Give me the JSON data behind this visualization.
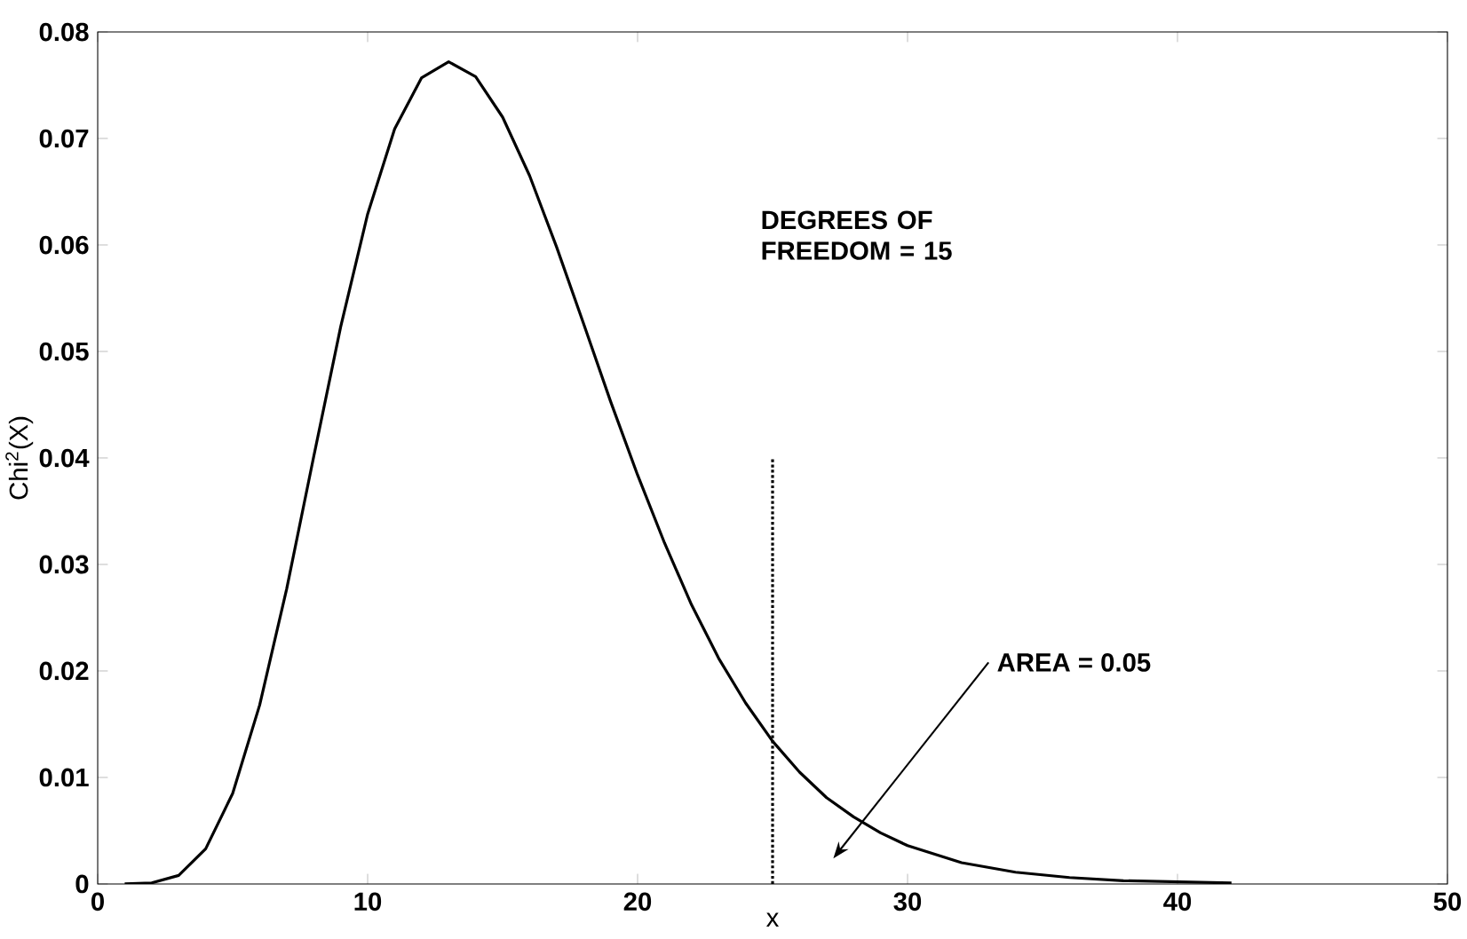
{
  "chart_data": {
    "type": "line",
    "xlabel": "x",
    "ylabel": "Chi$^{2}$(X)",
    "xlim": [
      0,
      50
    ],
    "ylim": [
      0,
      0.08
    ],
    "xticks": [
      0,
      10,
      20,
      30,
      40,
      50
    ],
    "yticks": [
      0,
      0.01,
      0.02,
      0.03,
      0.04,
      0.05,
      0.06,
      0.07,
      0.08
    ],
    "grid": false,
    "series": [
      {
        "color": "#000000",
        "line_style": "solid",
        "x": [
          1,
          2,
          3,
          4,
          5,
          6,
          7,
          8,
          9,
          10,
          11,
          12,
          13,
          14,
          15,
          16,
          17,
          18,
          19,
          20,
          21,
          22,
          23,
          24,
          25,
          26,
          27,
          28,
          29,
          30,
          32,
          34,
          36,
          38,
          40,
          42
        ],
        "values": [
          0.0,
          0.0001,
          0.0008,
          0.0033,
          0.0085,
          0.0168,
          0.0277,
          0.0401,
          0.0523,
          0.0629,
          0.0709,
          0.0757,
          0.0772,
          0.0758,
          0.072,
          0.0665,
          0.0598,
          0.0526,
          0.0453,
          0.0384,
          0.032,
          0.0262,
          0.0212,
          0.017,
          0.0134,
          0.0105,
          0.0081,
          0.0063,
          0.0048,
          0.0036,
          0.002,
          0.0011,
          0.0006,
          0.0003,
          0.0002,
          0.0001
        ]
      },
      {
        "color": "#000000",
        "line_style": "dotted",
        "x": [
          25,
          25
        ],
        "values": [
          0,
          0.04
        ]
      }
    ],
    "annotations": [
      "DEGREES OF FREEDOM = 15",
      "AREA = 0.05"
    ]
  }
}
